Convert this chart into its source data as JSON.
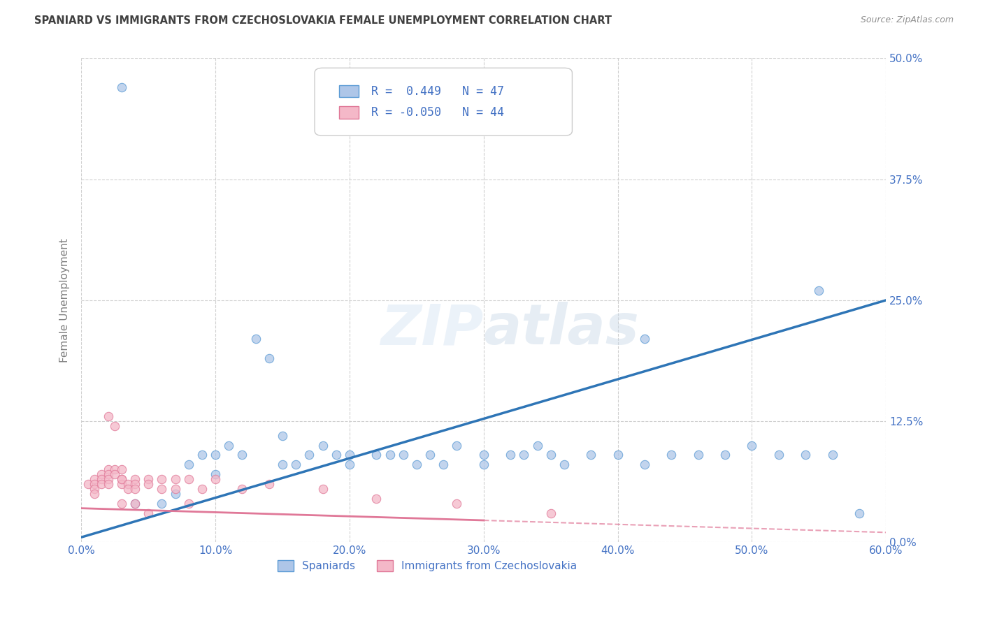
{
  "title": "SPANIARD VS IMMIGRANTS FROM CZECHOSLOVAKIA FEMALE UNEMPLOYMENT CORRELATION CHART",
  "source": "Source: ZipAtlas.com",
  "ylabel": "Female Unemployment",
  "xlim": [
    0.0,
    0.6
  ],
  "ylim": [
    0.0,
    0.5
  ],
  "xlabel_vals": [
    0.0,
    0.1,
    0.2,
    0.3,
    0.4,
    0.5,
    0.6
  ],
  "xlabel_ticks": [
    "0.0%",
    "10.0%",
    "20.0%",
    "30.0%",
    "40.0%",
    "50.0%",
    "60.0%"
  ],
  "ylabel_vals": [
    0.0,
    0.125,
    0.25,
    0.375,
    0.5
  ],
  "ylabel_ticks": [
    "0.0%",
    "12.5%",
    "25.0%",
    "37.5%",
    "50.0%"
  ],
  "R_spaniards": 0.449,
  "N_spaniards": 47,
  "R_czech": -0.05,
  "N_czech": 44,
  "color_spaniards": "#aec6e8",
  "color_czech": "#f4b8c8",
  "edge_spaniards": "#5b9bd5",
  "edge_czech": "#e07898",
  "line_color_spaniards": "#2e75b6",
  "line_color_czech": "#e07898",
  "background_color": "#ffffff",
  "grid_color": "#d0d0d0",
  "title_color": "#404040",
  "tick_color": "#4472c4",
  "legend_label_spaniards": "Spaniards",
  "legend_label_czech": "Immigrants from Czechoslovakia",
  "spaniards_x": [
    0.03,
    0.04,
    0.06,
    0.07,
    0.08,
    0.09,
    0.1,
    0.1,
    0.11,
    0.12,
    0.13,
    0.14,
    0.15,
    0.15,
    0.16,
    0.17,
    0.18,
    0.19,
    0.2,
    0.2,
    0.22,
    0.23,
    0.24,
    0.25,
    0.26,
    0.27,
    0.28,
    0.3,
    0.3,
    0.32,
    0.33,
    0.34,
    0.35,
    0.36,
    0.38,
    0.4,
    0.42,
    0.44,
    0.46,
    0.48,
    0.5,
    0.52,
    0.54,
    0.56,
    0.58,
    0.42,
    0.55
  ],
  "spaniards_y": [
    0.47,
    0.04,
    0.04,
    0.05,
    0.08,
    0.09,
    0.07,
    0.09,
    0.1,
    0.09,
    0.21,
    0.19,
    0.11,
    0.08,
    0.08,
    0.09,
    0.1,
    0.09,
    0.08,
    0.09,
    0.09,
    0.09,
    0.09,
    0.08,
    0.09,
    0.08,
    0.1,
    0.09,
    0.08,
    0.09,
    0.09,
    0.1,
    0.09,
    0.08,
    0.09,
    0.09,
    0.08,
    0.09,
    0.09,
    0.09,
    0.1,
    0.09,
    0.09,
    0.09,
    0.03,
    0.21,
    0.26
  ],
  "czech_x": [
    0.005,
    0.01,
    0.01,
    0.01,
    0.01,
    0.015,
    0.015,
    0.015,
    0.02,
    0.02,
    0.02,
    0.02,
    0.02,
    0.025,
    0.025,
    0.025,
    0.03,
    0.03,
    0.03,
    0.03,
    0.03,
    0.035,
    0.035,
    0.04,
    0.04,
    0.04,
    0.04,
    0.05,
    0.05,
    0.05,
    0.06,
    0.06,
    0.07,
    0.07,
    0.08,
    0.08,
    0.09,
    0.1,
    0.12,
    0.14,
    0.18,
    0.22,
    0.28,
    0.35
  ],
  "czech_y": [
    0.06,
    0.065,
    0.06,
    0.055,
    0.05,
    0.07,
    0.065,
    0.06,
    0.075,
    0.07,
    0.065,
    0.06,
    0.13,
    0.12,
    0.075,
    0.07,
    0.065,
    0.06,
    0.075,
    0.065,
    0.04,
    0.06,
    0.055,
    0.065,
    0.06,
    0.055,
    0.04,
    0.065,
    0.06,
    0.03,
    0.065,
    0.055,
    0.065,
    0.055,
    0.065,
    0.04,
    0.055,
    0.065,
    0.055,
    0.06,
    0.055,
    0.045,
    0.04,
    0.03
  ]
}
